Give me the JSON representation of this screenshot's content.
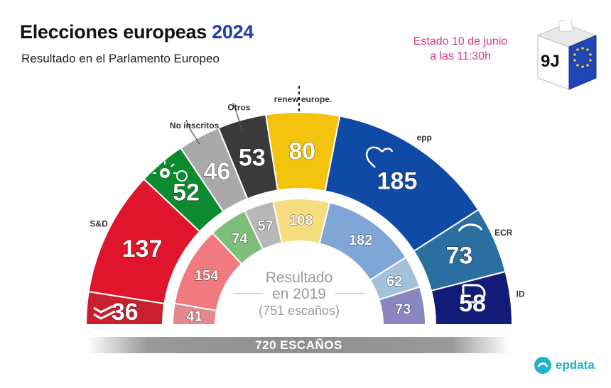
{
  "header": {
    "title_main": "Elecciones europeas",
    "title_year": "2024",
    "subtitle": "Resultado en el Parlamento Europeo",
    "status_line1": "Estado 10 de junio",
    "status_line2": "a las 11:30h",
    "ballot_label": "9J"
  },
  "footer": {
    "total_label": "720 ESCAÑOS",
    "brand": "epdata"
  },
  "center": {
    "line1": "Resultado",
    "line2": "en 2019",
    "line3": "(751 escaños)"
  },
  "chart_data": [
    {
      "type": "pie",
      "subtype": "parliament-hemicycle",
      "total_seats": 720,
      "series": [
        {
          "label": "",
          "value": 36,
          "color": "#c8202e"
        },
        {
          "label": "S&D",
          "value": 137,
          "color": "#e0142b"
        },
        {
          "label": "",
          "value": 52,
          "color": "#0b8a2e"
        },
        {
          "label": "No inscritos",
          "value": 46,
          "color": "#a9a9a9"
        },
        {
          "label": "Otros",
          "value": 53,
          "color": "#3a3a3a"
        },
        {
          "label": "renew europe.",
          "value": 80,
          "color": "#f4c30e"
        },
        {
          "label": "epp",
          "value": 185,
          "color": "#0f4aa6"
        },
        {
          "label": "ECR",
          "value": 73,
          "color": "#2b6fa0"
        },
        {
          "label": "ID",
          "value": 58,
          "color": "#141c7a"
        }
      ]
    },
    {
      "type": "pie",
      "subtype": "parliament-hemicycle",
      "title": "Resultado en 2019",
      "total_seats": 751,
      "series": [
        {
          "value": 41,
          "color": "#e3888c"
        },
        {
          "value": 154,
          "color": "#f07a80"
        },
        {
          "value": 74,
          "color": "#7dbf7a"
        },
        {
          "value": 57,
          "color": "#b7b7b7"
        },
        {
          "value": 108,
          "color": "#f8dd7e"
        },
        {
          "value": 182,
          "color": "#7fa6d6"
        },
        {
          "value": 62,
          "color": "#a3c1d8"
        },
        {
          "value": 73,
          "color": "#8a86c0"
        }
      ]
    }
  ]
}
